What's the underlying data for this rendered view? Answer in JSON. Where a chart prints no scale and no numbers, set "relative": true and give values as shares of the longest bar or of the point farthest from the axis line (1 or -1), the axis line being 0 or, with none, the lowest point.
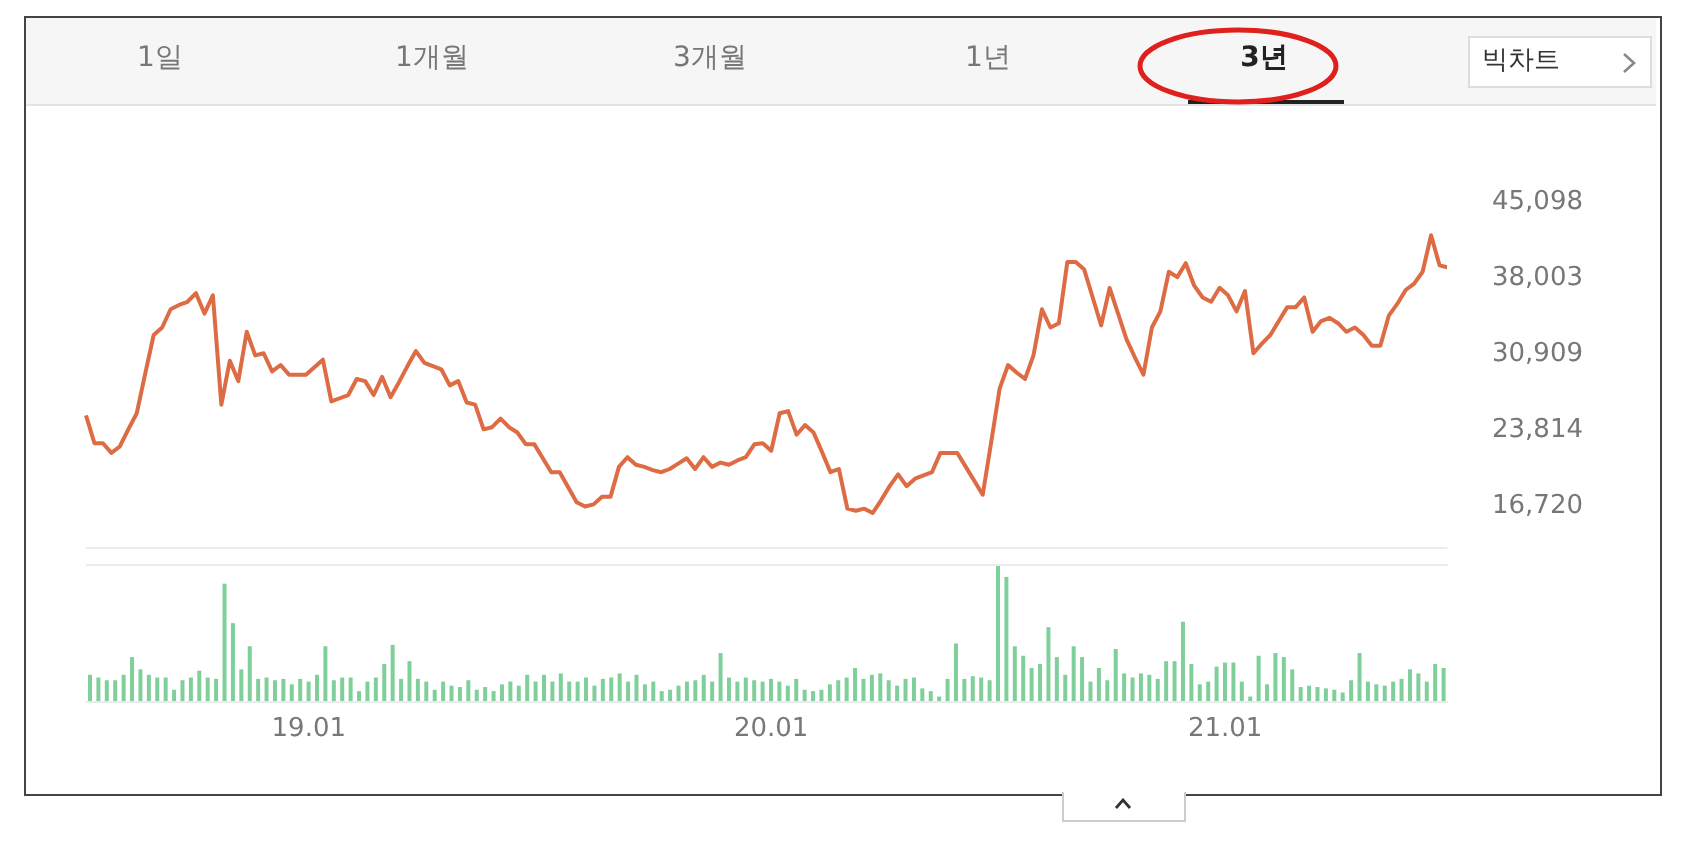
{
  "chart_data": [
    {
      "type": "line",
      "annotations": [
        "1일",
        "1개월",
        "3개월",
        "1년",
        "3년",
        "빅차트"
      ],
      "categories": [
        null,
        null,
        null,
        null,
        null,
        null,
        null,
        null,
        null,
        null,
        null,
        null,
        null,
        null,
        null,
        null,
        null,
        null,
        null,
        null,
        null,
        null,
        null,
        null,
        null,
        null,
        null,
        null,
        null,
        null,
        null,
        null,
        null,
        null,
        null,
        null,
        null,
        null,
        null,
        null,
        null,
        null,
        null,
        null,
        null,
        null,
        null,
        null,
        null,
        null,
        null,
        null,
        null,
        null,
        null,
        null,
        null,
        null,
        null,
        null,
        null,
        null,
        null,
        null,
        null,
        null,
        null,
        null,
        null,
        null,
        null,
        null,
        null,
        null,
        null,
        null,
        null,
        null,
        null,
        null,
        null,
        null,
        null,
        null,
        null,
        null,
        null,
        null,
        null,
        null,
        null,
        null,
        null,
        null,
        null,
        null,
        null,
        null,
        null,
        null,
        null,
        null,
        null,
        null,
        null,
        null,
        null,
        null,
        null,
        null,
        null,
        null,
        null,
        null,
        null,
        null,
        null,
        null,
        null,
        null,
        null,
        null,
        null,
        null,
        null,
        null,
        null,
        null,
        null,
        null,
        null,
        null,
        null,
        null,
        null,
        null,
        null,
        null,
        null,
        null,
        null,
        null,
        null,
        null,
        null,
        null,
        null,
        null,
        null,
        null,
        null,
        null,
        null,
        null,
        null,
        null,
        null,
        null,
        null,
        null,
        null,
        null
      ],
      "series": [
        {
          "color": "#dd6b43",
          "values": [
            25000,
            22400,
            22400,
            21500,
            22100,
            23700,
            25200,
            28900,
            32500,
            33200,
            34900,
            35300,
            35600,
            36400,
            34500,
            36200,
            26000,
            30100,
            28200,
            32800,
            30600,
            30800,
            29100,
            29700,
            28800,
            28800,
            28800,
            29500,
            30200,
            26300,
            26600,
            26900,
            28400,
            28200,
            26900,
            28600,
            26700,
            28100,
            29600,
            31000,
            29900,
            29600,
            29300,
            27800,
            28200,
            26200,
            26000,
            23700,
            23900,
            24700,
            23900,
            23400,
            22300,
            22300,
            21000,
            19700,
            19700,
            18300,
            16900,
            16500,
            16700,
            17400,
            17400,
            20200,
            21100,
            20400,
            20200,
            19900,
            19700,
            20000,
            20500,
            21000,
            20000,
            21100,
            20200,
            20600,
            20400,
            20800,
            21100,
            22300,
            22400,
            21700,
            25200,
            25400,
            23200,
            24100,
            23400,
            21600,
            19700,
            20000,
            16300,
            16100,
            16300,
            15900,
            17100,
            18400,
            19500,
            18400,
            19100,
            19400,
            19700,
            21500,
            21500,
            21500,
            20200,
            18900,
            17600,
            22500,
            27500,
            29700,
            29000,
            28400,
            30600,
            34900,
            33200,
            33600,
            39300,
            39300,
            38600,
            36000,
            33400,
            36900,
            34500,
            32100,
            30400,
            28800,
            33200,
            34700,
            38400,
            37900,
            39200,
            37100,
            36000,
            35600,
            36900,
            36200,
            34700,
            36600,
            30800,
            31700,
            32500,
            33800,
            35100,
            35100,
            36000,
            32800,
            33800,
            34100,
            33600,
            32800,
            33200,
            32500,
            31500,
            31500,
            34300,
            35400,
            36700,
            37300,
            38400,
            41800,
            39000,
            38800
          ]
        }
      ],
      "ylim": [
        12630,
        46400
      ],
      "yticks": [
        {
          "value": 16720,
          "label": "16,720"
        },
        {
          "value": 23814,
          "label": "23,814"
        },
        {
          "value": 30909,
          "label": "30,909"
        },
        {
          "value": 38003,
          "label": "38,003"
        },
        {
          "value": 45098,
          "label": "45,098"
        }
      ],
      "tick_labels": "y",
      "marker": "none"
    },
    {
      "type": "bar",
      "relative": true,
      "categories": [
        null,
        null,
        null,
        null,
        null,
        null,
        null,
        null,
        null,
        null,
        null,
        null,
        null,
        null,
        null,
        null,
        null,
        null,
        null,
        null,
        null,
        null,
        null,
        null,
        null,
        null,
        "19.01",
        null,
        null,
        null,
        null,
        null,
        null,
        null,
        null,
        null,
        null,
        null,
        null,
        null,
        null,
        null,
        null,
        null,
        null,
        null,
        null,
        null,
        null,
        null,
        null,
        null,
        null,
        null,
        null,
        null,
        null,
        null,
        null,
        null,
        null,
        null,
        null,
        null,
        null,
        null,
        null,
        null,
        null,
        null,
        null,
        null,
        null,
        null,
        null,
        null,
        null,
        null,
        null,
        null,
        null,
        "20.01",
        null,
        null,
        null,
        null,
        null,
        null,
        null,
        null,
        null,
        null,
        null,
        null,
        null,
        null,
        null,
        null,
        null,
        null,
        null,
        null,
        null,
        null,
        null,
        null,
        null,
        null,
        null,
        null,
        null,
        null,
        null,
        null,
        null,
        null,
        null,
        null,
        null,
        null,
        null,
        null,
        null,
        null,
        null,
        null,
        null,
        null,
        null,
        null,
        null,
        null,
        null,
        null,
        null,
        "21.01",
        null,
        null,
        null,
        null,
        null,
        null,
        null,
        null,
        null,
        null,
        null,
        null,
        null,
        null,
        null,
        null,
        null,
        null,
        null,
        null,
        null,
        null,
        null,
        null,
        null,
        null
      ],
      "series": [
        {
          "color": "#7fcf9a",
          "values": [
            0.2,
            0.18,
            0.16,
            0.16,
            0.2,
            0.33,
            0.24,
            0.2,
            0.18,
            0.18,
            0.09,
            0.16,
            0.18,
            0.23,
            0.18,
            0.17,
            0.87,
            0.58,
            0.24,
            0.41,
            0.17,
            0.18,
            0.16,
            0.17,
            0.13,
            0.17,
            0.15,
            0.2,
            0.41,
            0.16,
            0.18,
            0.18,
            0.08,
            0.15,
            0.18,
            0.28,
            0.42,
            0.17,
            0.3,
            0.17,
            0.15,
            0.09,
            0.15,
            0.12,
            0.11,
            0.16,
            0.09,
            0.11,
            0.08,
            0.13,
            0.15,
            0.12,
            0.2,
            0.15,
            0.2,
            0.15,
            0.21,
            0.15,
            0.15,
            0.18,
            0.12,
            0.17,
            0.18,
            0.21,
            0.15,
            0.2,
            0.13,
            0.15,
            0.08,
            0.09,
            0.12,
            0.15,
            0.16,
            0.2,
            0.15,
            0.36,
            0.18,
            0.15,
            0.18,
            0.16,
            0.15,
            0.17,
            0.15,
            0.12,
            0.17,
            0.09,
            0.08,
            0.09,
            0.13,
            0.16,
            0.18,
            0.25,
            0.17,
            0.2,
            0.21,
            0.16,
            0.12,
            0.17,
            0.18,
            0.1,
            0.08,
            0.04,
            0.17,
            0.43,
            0.17,
            0.19,
            0.18,
            0.16,
            1,
            0.92,
            0.41,
            0.34,
            0.25,
            0.28,
            0.55,
            0.33,
            0.2,
            0.41,
            0.33,
            0.15,
            0.25,
            0.16,
            0.39,
            0.21,
            0.18,
            0.21,
            0.2,
            0.17,
            0.3,
            0.3,
            0.59,
            0.28,
            0.13,
            0.15,
            0.26,
            0.29,
            0.29,
            0.15,
            0.04,
            0.34,
            0.13,
            0.36,
            0.33,
            0.24,
            0.11,
            0.12,
            0.11,
            0.1,
            0.09,
            0.07,
            0.16,
            0.36,
            0.15,
            0.13,
            0.12,
            0.15,
            0.17,
            0.24,
            0.21,
            0.15,
            0.28,
            0.25
          ]
        }
      ],
      "tick_labels": "x"
    }
  ]
}
